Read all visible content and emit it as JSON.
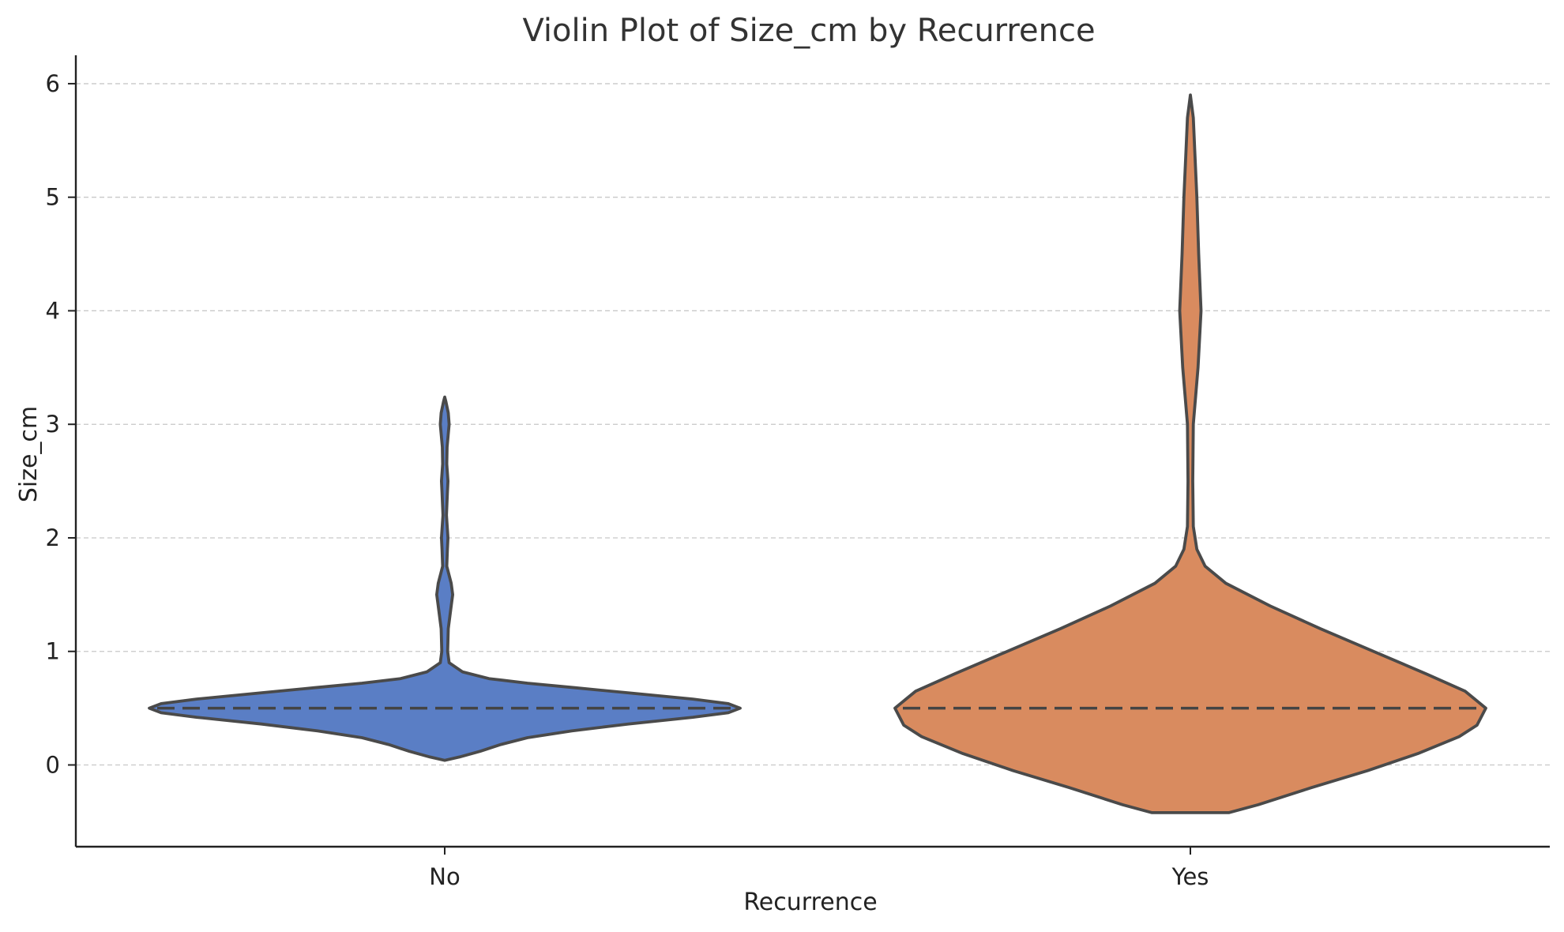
{
  "chart_data": {
    "type": "violin",
    "title": "Violin Plot of Size_cm by Recurrence",
    "xlabel": "Recurrence",
    "ylabel": "Size_cm",
    "categories": [
      "No",
      "Yes"
    ],
    "ylim": [
      -0.72,
      6.25
    ],
    "yticks": [
      0,
      1,
      2,
      3,
      4,
      5,
      6
    ],
    "grid": "horizontal-dashed",
    "median_style": "dashed",
    "colors": {
      "No": "#5a7ec5",
      "Yes": "#d98b5f"
    },
    "violins": [
      {
        "category": "No",
        "median": 0.5,
        "range": [
          0.04,
          3.24
        ],
        "density": [
          [
            0.04,
            0.0
          ],
          [
            0.07,
            0.05
          ],
          [
            0.12,
            0.12
          ],
          [
            0.18,
            0.19
          ],
          [
            0.24,
            0.28
          ],
          [
            0.3,
            0.43
          ],
          [
            0.36,
            0.62
          ],
          [
            0.42,
            0.84
          ],
          [
            0.46,
            0.96
          ],
          [
            0.5,
            1.0
          ],
          [
            0.54,
            0.96
          ],
          [
            0.58,
            0.84
          ],
          [
            0.63,
            0.64
          ],
          [
            0.68,
            0.44
          ],
          [
            0.72,
            0.28
          ],
          [
            0.76,
            0.15
          ],
          [
            0.82,
            0.06
          ],
          [
            0.9,
            0.015
          ],
          [
            1.0,
            0.01
          ],
          [
            1.2,
            0.012
          ],
          [
            1.4,
            0.022
          ],
          [
            1.5,
            0.027
          ],
          [
            1.6,
            0.022
          ],
          [
            1.75,
            0.007
          ],
          [
            1.9,
            0.009
          ],
          [
            2.0,
            0.011
          ],
          [
            2.2,
            0.006
          ],
          [
            2.4,
            0.009
          ],
          [
            2.5,
            0.011
          ],
          [
            2.65,
            0.007
          ],
          [
            2.8,
            0.008
          ],
          [
            3.0,
            0.015
          ],
          [
            3.1,
            0.012
          ],
          [
            3.2,
            0.004
          ],
          [
            3.24,
            0.0
          ]
        ]
      },
      {
        "category": "Yes",
        "median": 0.5,
        "range": [
          -0.42,
          5.9
        ],
        "density": [
          [
            -0.42,
            0.13
          ],
          [
            -0.35,
            0.23
          ],
          [
            -0.2,
            0.41
          ],
          [
            -0.05,
            0.6
          ],
          [
            0.1,
            0.77
          ],
          [
            0.25,
            0.91
          ],
          [
            0.35,
            0.97
          ],
          [
            0.5,
            1.0
          ],
          [
            0.65,
            0.93
          ],
          [
            0.8,
            0.8
          ],
          [
            1.0,
            0.62
          ],
          [
            1.2,
            0.44
          ],
          [
            1.4,
            0.27
          ],
          [
            1.6,
            0.12
          ],
          [
            1.75,
            0.05
          ],
          [
            1.9,
            0.022
          ],
          [
            2.1,
            0.01
          ],
          [
            2.5,
            0.008
          ],
          [
            3.0,
            0.01
          ],
          [
            3.5,
            0.026
          ],
          [
            4.0,
            0.036
          ],
          [
            4.5,
            0.028
          ],
          [
            5.0,
            0.022
          ],
          [
            5.4,
            0.015
          ],
          [
            5.7,
            0.01
          ],
          [
            5.9,
            0.0
          ]
        ]
      }
    ]
  }
}
